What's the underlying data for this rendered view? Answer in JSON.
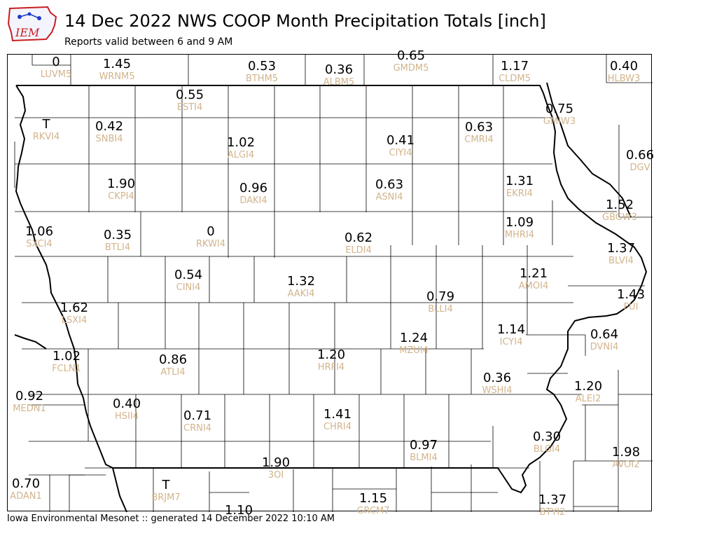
{
  "header": {
    "title": "14 Dec 2022 NWS COOP Month Precipitation Totals [inch]",
    "subtitle": "Reports valid between 6 and 9 AM",
    "logo_text": "IEM"
  },
  "footer": {
    "text": "Iowa Environmental Mesonet :: generated 14 December 2022 10:10 AM"
  },
  "colors": {
    "value": "#000000",
    "station": "#d2b48c",
    "county_line": "#000000",
    "logo_red": "#c81e1e",
    "logo_blue": "#1e3cc8"
  },
  "stations": [
    {
      "id": "LUVM5",
      "value": "0"
    },
    {
      "id": "WRNM5",
      "value": "1.45"
    },
    {
      "id": "BTHM5",
      "value": "0.53"
    },
    {
      "id": "ALBM5",
      "value": "0.36"
    },
    {
      "id": "GMDM5",
      "value": "0.65"
    },
    {
      "id": "CLDM5",
      "value": "1.17"
    },
    {
      "id": "HLBW3",
      "value": "0.40"
    },
    {
      "id": "ESTI4",
      "value": "0.55"
    },
    {
      "id": "RKVI4",
      "value": "T"
    },
    {
      "id": "SNBI4",
      "value": "0.42"
    },
    {
      "id": "ALGI4",
      "value": "1.02"
    },
    {
      "id": "CIYI4",
      "value": "0.41"
    },
    {
      "id": "CMRI4",
      "value": "0.63"
    },
    {
      "id": "GMIW3",
      "value": "0.75"
    },
    {
      "id": "DGV",
      "value": "0.66"
    },
    {
      "id": "CKPI4",
      "value": "1.90"
    },
    {
      "id": "DAKI4",
      "value": "0.96"
    },
    {
      "id": "ASNI4",
      "value": "0.63"
    },
    {
      "id": "EKRI4",
      "value": "1.31"
    },
    {
      "id": "GBGW3",
      "value": "1.52"
    },
    {
      "id": "SXCI4",
      "value": "1.06"
    },
    {
      "id": "BTLI4",
      "value": "0.35"
    },
    {
      "id": "RKWI4",
      "value": "0"
    },
    {
      "id": "ELDI4",
      "value": "0.62"
    },
    {
      "id": "MHRI4",
      "value": "1.09"
    },
    {
      "id": "BLVI4",
      "value": "1.37"
    },
    {
      "id": "CINI4",
      "value": "0.54"
    },
    {
      "id": "AAKI4",
      "value": "1.32"
    },
    {
      "id": "AMOI4",
      "value": "1.21"
    },
    {
      "id": "BLLI4",
      "value": "0.79"
    },
    {
      "id": "FUI",
      "value": "1.43"
    },
    {
      "id": "LSXI4",
      "value": "1.62"
    },
    {
      "id": "ICYI4",
      "value": "1.14"
    },
    {
      "id": "MZUI4",
      "value": "1.24"
    },
    {
      "id": "DVNI4",
      "value": "0.64"
    },
    {
      "id": "FCLN1",
      "value": "1.02"
    },
    {
      "id": "ATLI4",
      "value": "0.86"
    },
    {
      "id": "HRFI4",
      "value": "1.20"
    },
    {
      "id": "WSHI4",
      "value": "0.36"
    },
    {
      "id": "ALEI2",
      "value": "1.20"
    },
    {
      "id": "MEDN1",
      "value": "0.92"
    },
    {
      "id": "HSII4",
      "value": "0.40"
    },
    {
      "id": "CRNI4",
      "value": "0.71"
    },
    {
      "id": "CHRI4",
      "value": "1.41"
    },
    {
      "id": "BLMI4",
      "value": "0.97"
    },
    {
      "id": "BLGI4",
      "value": "0.30"
    },
    {
      "id": "AVOI2",
      "value": "1.98"
    },
    {
      "id": "3OI",
      "value": "1.90"
    },
    {
      "id": "ADAN1",
      "value": "0.70"
    },
    {
      "id": "BRJM7",
      "value": "T"
    },
    {
      "id": "GRCM7",
      "value": "1.15"
    },
    {
      "id": "BTYI2",
      "value": "1.37"
    },
    {
      "id": "",
      "value": "1.10"
    }
  ]
}
